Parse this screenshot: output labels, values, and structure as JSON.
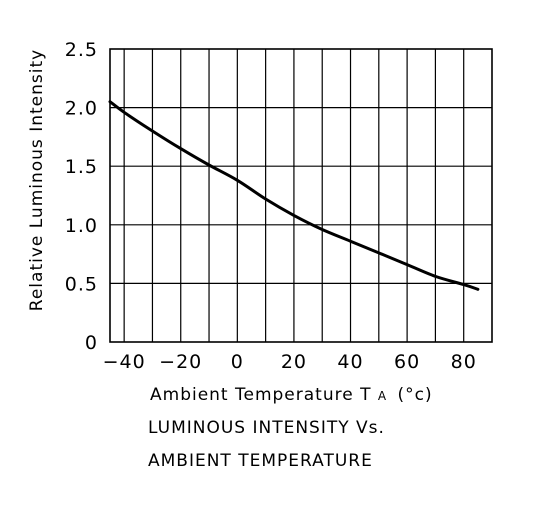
{
  "chart_data": {
    "type": "line",
    "title": "",
    "xlabel_main": "Ambient Temperature T",
    "xlabel_sub": "A",
    "xlabel_unit": "(°c)",
    "ylabel": "Relative Luminous Intensity",
    "caption": [
      "LUMINOUS INTENSITY Vs.",
      "AMBIENT TEMPERATURE"
    ],
    "xlim": [
      -45,
      90
    ],
    "ylim": [
      0,
      2.5
    ],
    "x_grid_step": 10,
    "x_ticks": [
      -40,
      -20,
      0,
      20,
      40,
      60,
      80
    ],
    "x_tick_labels": [
      "−40",
      "−20",
      "0",
      "20",
      "40",
      "60",
      "80"
    ],
    "y_ticks": [
      0,
      0.5,
      1.0,
      1.5,
      2.0,
      2.5
    ],
    "y_tick_labels": [
      "0",
      "0.5",
      "1.0",
      "1.5",
      "2.0",
      "2.5"
    ],
    "grid": true,
    "line_color": "#000000",
    "series": [
      {
        "x": [
          -45,
          -40,
          -30,
          -20,
          -10,
          0,
          10,
          20,
          30,
          40,
          50,
          60,
          70,
          80,
          85
        ],
        "y": [
          2.05,
          1.96,
          1.8,
          1.65,
          1.51,
          1.38,
          1.22,
          1.08,
          0.96,
          0.86,
          0.76,
          0.66,
          0.56,
          0.49,
          0.45
        ]
      }
    ]
  }
}
